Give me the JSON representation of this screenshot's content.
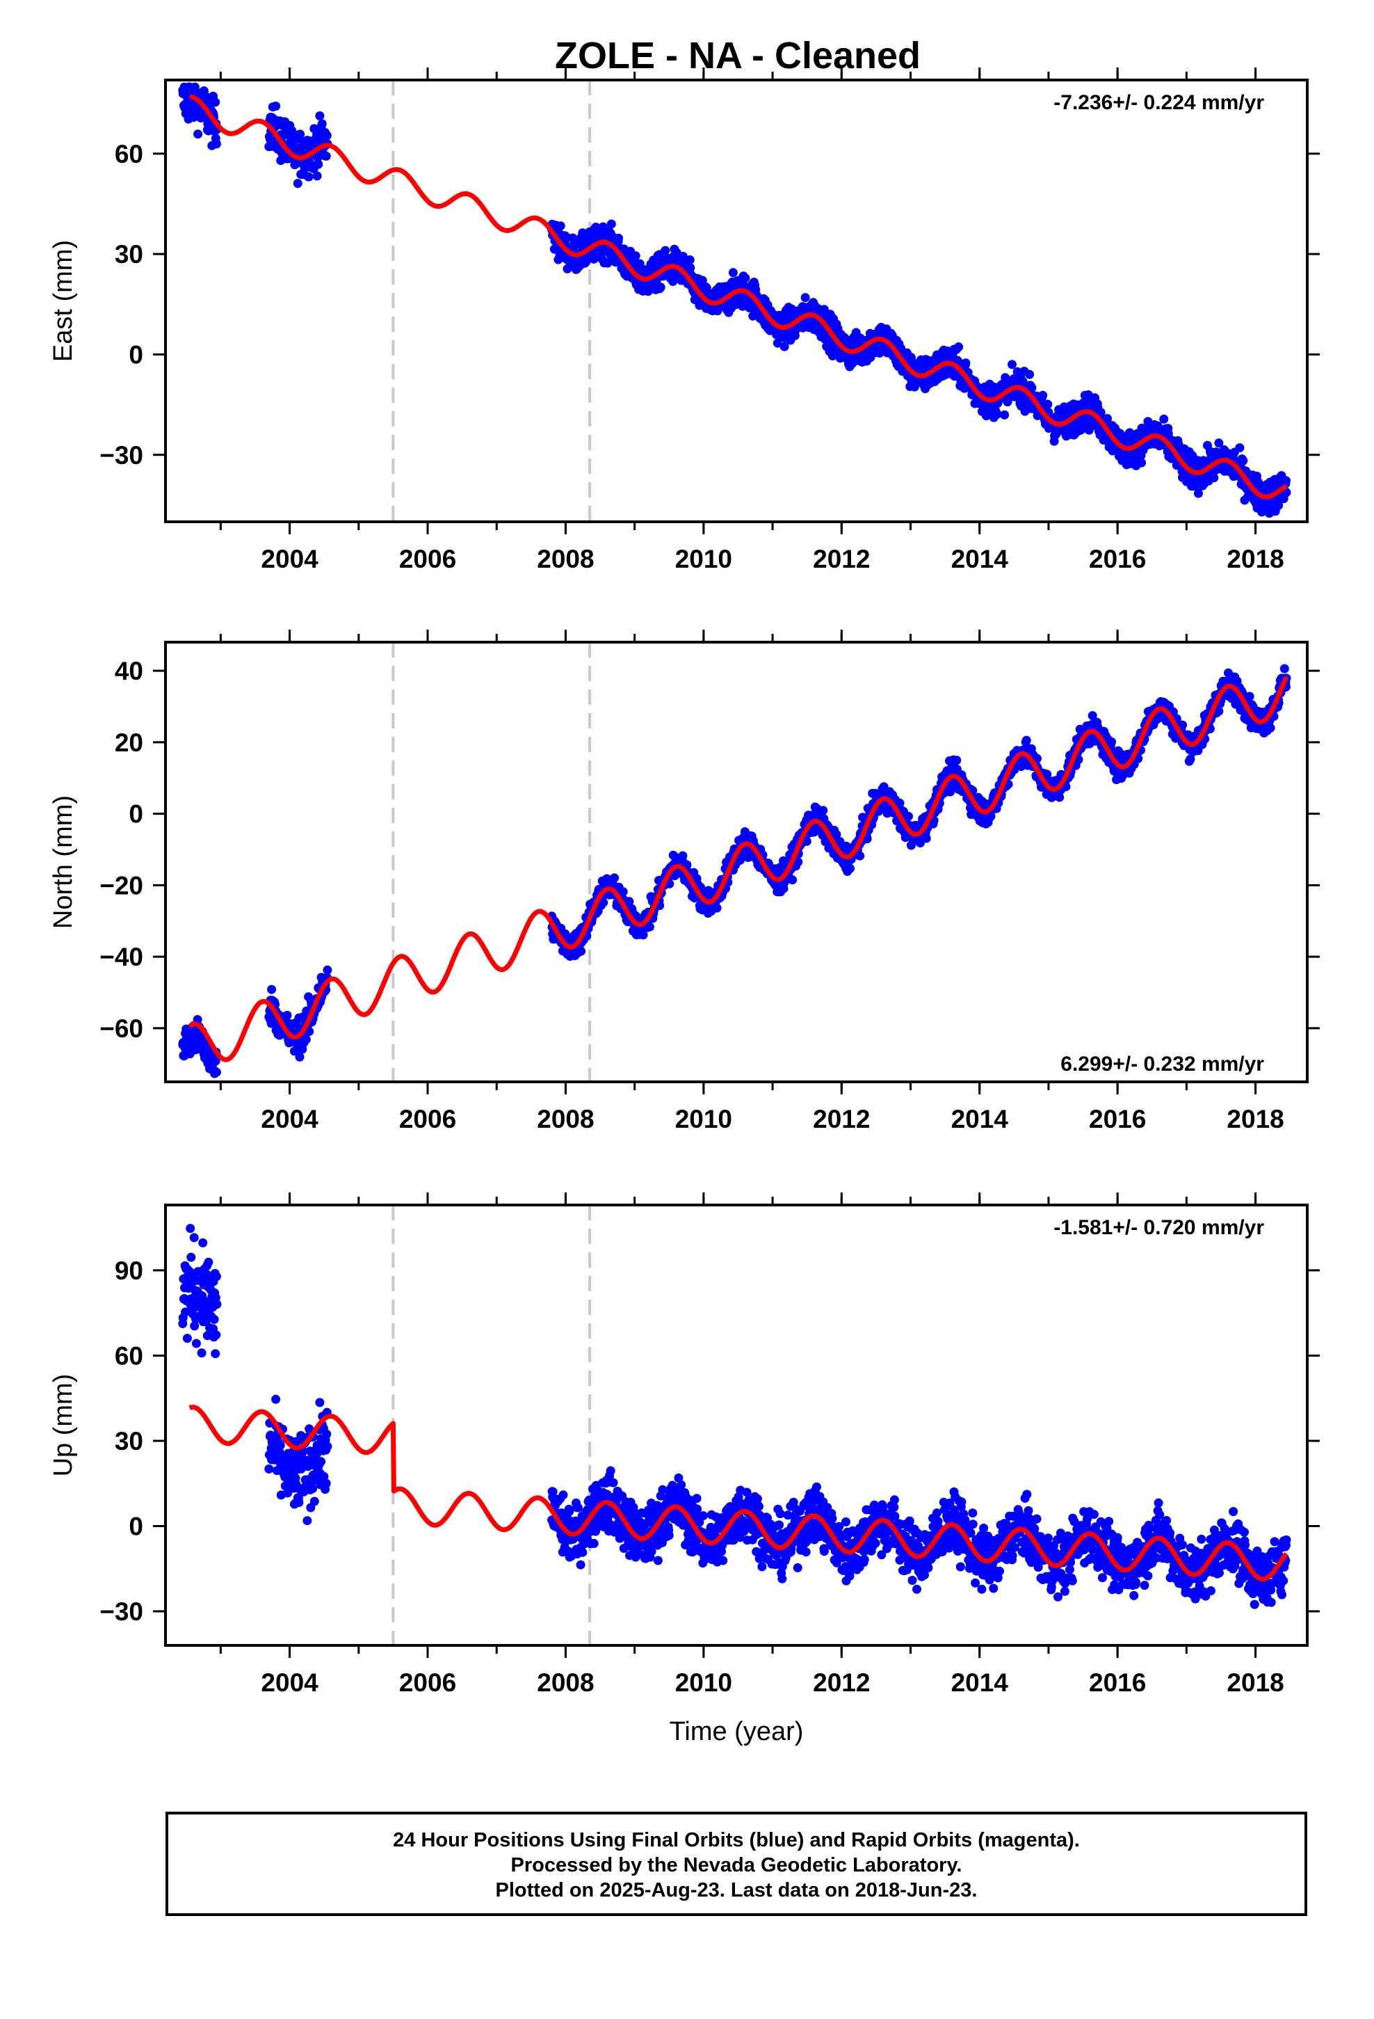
{
  "colors": {
    "data": "#0000ff",
    "model": "#ff0000",
    "break": "#c8c8c8",
    "axis": "#000000"
  },
  "chart_data": [
    {
      "type": "scatter",
      "title": "ZOLE  - NA - Cleaned",
      "xlabel": "",
      "ylabel": "East (mm)",
      "xlim": [
        2002.2,
        2018.75
      ],
      "ylim": [
        -50,
        82
      ],
      "xticks": [
        "2004",
        "2006",
        "2008",
        "2010",
        "2012",
        "2014",
        "2016",
        "2018"
      ],
      "yticks": [
        "60",
        "30",
        "0",
        "−30"
      ],
      "rate_text": "-7.236+/- 0.224 mm/yr",
      "rate_position": "top-right",
      "rate": -7.236,
      "rate_sigma": 0.224,
      "breaks": [
        2005.5,
        2008.35
      ],
      "model": {
        "offset_2002": 74,
        "amplitude": 3.5,
        "steps": []
      },
      "data_segments": [
        {
          "start": 2002.45,
          "end": 2002.95,
          "bias": -1,
          "noise": 3.5
        },
        {
          "start": 2003.7,
          "end": 2004.55,
          "bias": 1,
          "noise": 3.5
        },
        {
          "start": 2007.8,
          "end": 2018.45,
          "bias": 0,
          "noise": 2.5
        }
      ]
    },
    {
      "type": "scatter",
      "title": "",
      "xlabel": "",
      "ylabel": "North (mm)",
      "xlim": [
        2002.2,
        2018.75
      ],
      "ylim": [
        -75,
        48
      ],
      "xticks": [
        "2004",
        "2006",
        "2008",
        "2010",
        "2012",
        "2014",
        "2016",
        "2018"
      ],
      "yticks": [
        "40",
        "20",
        "0",
        "−20",
        "−40",
        "−60"
      ],
      "rate_text": "6.299+/- 0.232 mm/yr",
      "rate_position": "bottom-right",
      "rate": 6.299,
      "rate_sigma": 0.232,
      "breaks": [
        2005.5,
        2008.35
      ],
      "model": {
        "offset_2002": -66,
        "amplitude": 6.5,
        "steps": []
      },
      "data_segments": [
        {
          "start": 2002.45,
          "end": 2002.95,
          "bias": -4,
          "noise": 2.5
        },
        {
          "start": 2003.7,
          "end": 2004.55,
          "bias": 0,
          "noise": 2.5
        },
        {
          "start": 2007.8,
          "end": 2018.45,
          "bias": 0,
          "noise": 1.8
        }
      ]
    },
    {
      "type": "scatter",
      "title": "",
      "xlabel": "Time (year)",
      "ylabel": "Up (mm)",
      "xlim": [
        2002.2,
        2018.75
      ],
      "ylim": [
        -42,
        113
      ],
      "xticks": [
        "2004",
        "2006",
        "2008",
        "2010",
        "2012",
        "2014",
        "2016",
        "2018"
      ],
      "yticks": [
        "90",
        "60",
        "30",
        "0",
        "−30"
      ],
      "rate_text": "-1.581+/- 0.720 mm/yr",
      "rate_position": "top-right",
      "rate": -1.581,
      "rate_sigma": 0.72,
      "breaks": [
        2005.5,
        2008.35
      ],
      "model": {
        "offset_2002": 36,
        "amplitude": 6,
        "steps": [
          {
            "at": 2005.5,
            "size": -24
          }
        ]
      },
      "data_segments": [
        {
          "start": 2002.45,
          "end": 2002.95,
          "bias": 42,
          "noise": 9
        },
        {
          "start": 2003.7,
          "end": 2004.55,
          "bias": -10,
          "noise": 7
        },
        {
          "start": 2007.8,
          "end": 2018.45,
          "bias": 0,
          "noise": 5
        }
      ]
    }
  ],
  "footer": {
    "line1": "24 Hour Positions Using Final Orbits (blue) and Rapid Orbits (magenta).",
    "line2": "Processed by the Nevada Geodetic Laboratory.",
    "line3": "Plotted on 2025-Aug-23. Last data on 2018-Jun-23."
  }
}
